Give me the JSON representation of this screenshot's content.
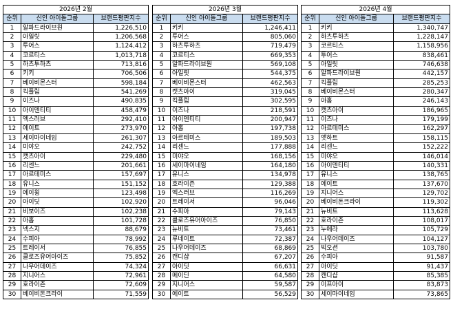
{
  "tables": [
    {
      "month": "2026년 2월",
      "headers": [
        "순위",
        "신인 아이돌그룹",
        "브랜드평판지수"
      ],
      "rows": [
        [
          "1",
          "알파드라이브원",
          "1,226,510"
        ],
        [
          "2",
          "아일릿",
          "1,206,568"
        ],
        [
          "3",
          "투어스",
          "1,124,412"
        ],
        [
          "4",
          "코르티스",
          "1,013,718"
        ],
        [
          "5",
          "하츠투하츠",
          "713,816"
        ],
        [
          "6",
          "키키",
          "706,506"
        ],
        [
          "7",
          "베이비몬스터",
          "598,184"
        ],
        [
          "8",
          "킥플립",
          "541,269"
        ],
        [
          "9",
          "이즈나",
          "490,835"
        ],
        [
          "10",
          "아이덴티티",
          "458,479"
        ],
        [
          "11",
          "엑스러브",
          "292,410"
        ],
        [
          "12",
          "에이트",
          "273,970"
        ],
        [
          "13",
          "세이마이네임",
          "261,307"
        ],
        [
          "14",
          "미야오",
          "242,752"
        ],
        [
          "15",
          "캣츠아이",
          "229,480"
        ],
        [
          "16",
          "리센느",
          "201,661"
        ],
        [
          "17",
          "아르테미스",
          "157,697"
        ],
        [
          "18",
          "유니스",
          "151,152"
        ],
        [
          "19",
          "에이윙",
          "123,498"
        ],
        [
          "20",
          "아이딧",
          "102,920"
        ],
        [
          "21",
          "비보이즈",
          "102,238"
        ],
        [
          "22",
          "아홉",
          "101,728"
        ],
        [
          "23",
          "넥스지",
          "88,679"
        ],
        [
          "24",
          "수피아",
          "78,992"
        ],
        [
          "25",
          "트레이서",
          "76,855"
        ],
        [
          "26",
          "클로즈유어아이즈",
          "75,852"
        ],
        [
          "27",
          "나우어데이즈",
          "74,324"
        ],
        [
          "28",
          "지니어스",
          "72,961"
        ],
        [
          "29",
          "호라이즌",
          "72,609"
        ],
        [
          "30",
          "베이비돈크라이",
          "71,559"
        ]
      ]
    },
    {
      "month": "2026년 3월",
      "headers": [
        "순위",
        "신인 아이돌그룹",
        "브랜드평판지수"
      ],
      "rows": [
        [
          "1",
          "키키",
          "1,246,411"
        ],
        [
          "2",
          "투어스",
          "805,060"
        ],
        [
          "3",
          "하츠투하츠",
          "719,479"
        ],
        [
          "4",
          "코르티스",
          "669,353"
        ],
        [
          "5",
          "알파드라이브원",
          "569,108"
        ],
        [
          "6",
          "아일릿",
          "544,375"
        ],
        [
          "7",
          "베이비몬스터",
          "462,563"
        ],
        [
          "8",
          "캣츠아이",
          "319,045"
        ],
        [
          "9",
          "킥플립",
          "302,595"
        ],
        [
          "10",
          "이즈나",
          "218,591"
        ],
        [
          "11",
          "아이덴티티",
          "200,947"
        ],
        [
          "12",
          "아홉",
          "197,738"
        ],
        [
          "13",
          "아르테미스",
          "189,503"
        ],
        [
          "14",
          "리센느",
          "177,888"
        ],
        [
          "15",
          "미야오",
          "168,156"
        ],
        [
          "16",
          "세이마이네임",
          "164,180"
        ],
        [
          "17",
          "유니스",
          "134,978"
        ],
        [
          "18",
          "호라이즌",
          "129,388"
        ],
        [
          "19",
          "엑스러브",
          "116,269"
        ],
        [
          "20",
          "트레이서",
          "96,046"
        ],
        [
          "21",
          "수피아",
          "79,143"
        ],
        [
          "22",
          "클로즈유어아이즈",
          "76,850"
        ],
        [
          "23",
          "뉴비트",
          "73,461"
        ],
        [
          "24",
          "루네이트",
          "72,387"
        ],
        [
          "25",
          "나우어데이즈",
          "68,869"
        ],
        [
          "26",
          "캔디샵",
          "67,207"
        ],
        [
          "27",
          "아이딧",
          "66,631"
        ],
        [
          "28",
          "메이딘",
          "64,580"
        ],
        [
          "29",
          "지니어스",
          "59,587"
        ],
        [
          "30",
          "에이트",
          "56,529"
        ]
      ]
    },
    {
      "month": "2026년 4월",
      "headers": [
        "순위",
        "신인 아이돌그룹",
        "브랜드평판지수"
      ],
      "rows": [
        [
          "1",
          "키키",
          "1,340,747"
        ],
        [
          "2",
          "하츠투하츠",
          "1,228,147"
        ],
        [
          "3",
          "코르티스",
          "1,158,956"
        ],
        [
          "4",
          "투어스",
          "838,461"
        ],
        [
          "5",
          "아일릿",
          "746,638"
        ],
        [
          "6",
          "알파드라이브원",
          "442,157"
        ],
        [
          "7",
          "킥플립",
          "285,253"
        ],
        [
          "8",
          "베이비몬스터",
          "280,347"
        ],
        [
          "9",
          "아홉",
          "246,143"
        ],
        [
          "10",
          "캣츠아이",
          "186,965"
        ],
        [
          "11",
          "이즈나",
          "179,199"
        ],
        [
          "12",
          "아르테미스",
          "162,297"
        ],
        [
          "13",
          "앳하트",
          "158,115"
        ],
        [
          "14",
          "리센느",
          "152,222"
        ],
        [
          "15",
          "미야오",
          "146,014"
        ],
        [
          "16",
          "아이덴티티",
          "140,331"
        ],
        [
          "17",
          "유니스",
          "138,765"
        ],
        [
          "18",
          "에이트",
          "137,670"
        ],
        [
          "19",
          "지니어스",
          "129,702"
        ],
        [
          "20",
          "베이비돈크라이",
          "119,302"
        ],
        [
          "21",
          "뉴비트",
          "113,628"
        ],
        [
          "22",
          "호라이즌",
          "108,017"
        ],
        [
          "23",
          "누에라",
          "105,729"
        ],
        [
          "24",
          "나우어데이즈",
          "104,127"
        ],
        [
          "25",
          "빅오션",
          "103,780"
        ],
        [
          "26",
          "수피아",
          "91,587"
        ],
        [
          "27",
          "아이딧",
          "91,437"
        ],
        [
          "28",
          "캔디샵",
          "85,385"
        ],
        [
          "29",
          "이프아이",
          "83,873"
        ],
        [
          "30",
          "세이마이네임",
          "73,865"
        ]
      ]
    }
  ]
}
